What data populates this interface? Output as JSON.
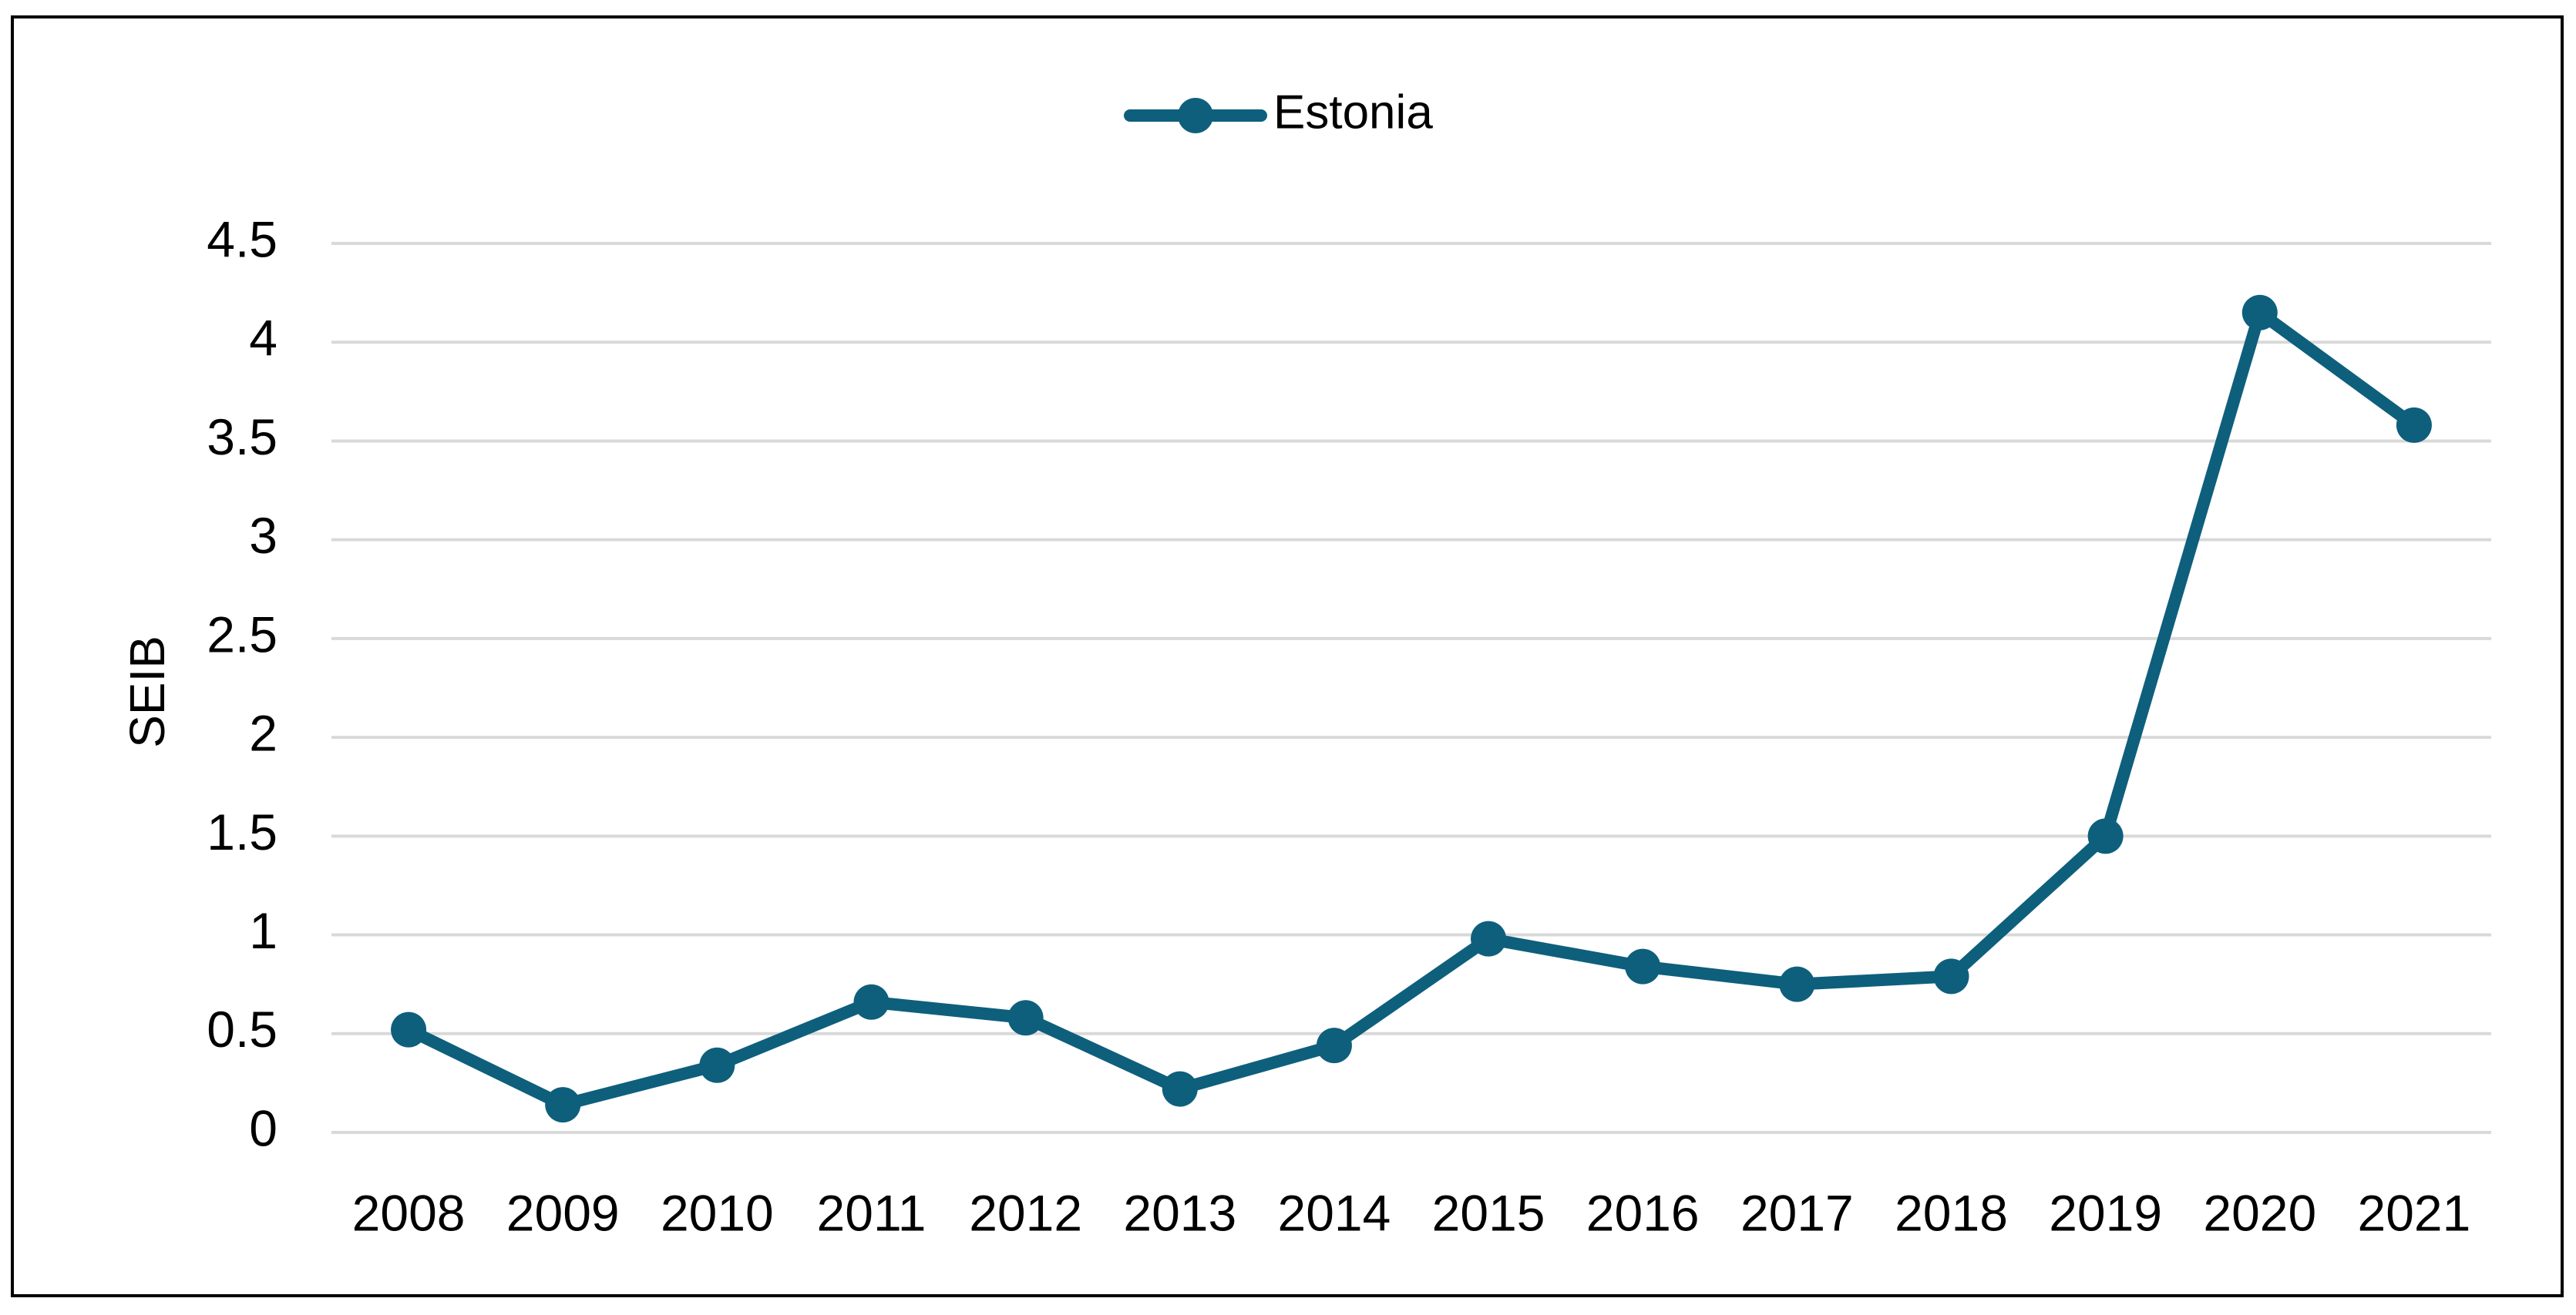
{
  "chart_data": {
    "type": "line",
    "title": "",
    "xlabel": "",
    "ylabel": "SEIB",
    "categories": [
      "2008",
      "2009",
      "2010",
      "2011",
      "2012",
      "2013",
      "2014",
      "2015",
      "2016",
      "2017",
      "2018",
      "2019",
      "2020",
      "2021"
    ],
    "series": [
      {
        "name": "Estonia",
        "color": "#0e5f7c",
        "values": [
          0.52,
          0.14,
          0.34,
          0.66,
          0.58,
          0.22,
          0.44,
          0.98,
          0.84,
          0.75,
          0.79,
          1.5,
          4.15,
          3.58
        ]
      }
    ],
    "ylim": [
      0,
      4.5
    ],
    "yticks": [
      "0",
      "0.5",
      "1",
      "1.5",
      "2",
      "2.5",
      "3",
      "3.5",
      "4",
      "4.5"
    ],
    "grid": true,
    "legend_position": "top-center",
    "colors": {
      "gridline": "#d9d9d9",
      "frame": "#000000"
    }
  }
}
